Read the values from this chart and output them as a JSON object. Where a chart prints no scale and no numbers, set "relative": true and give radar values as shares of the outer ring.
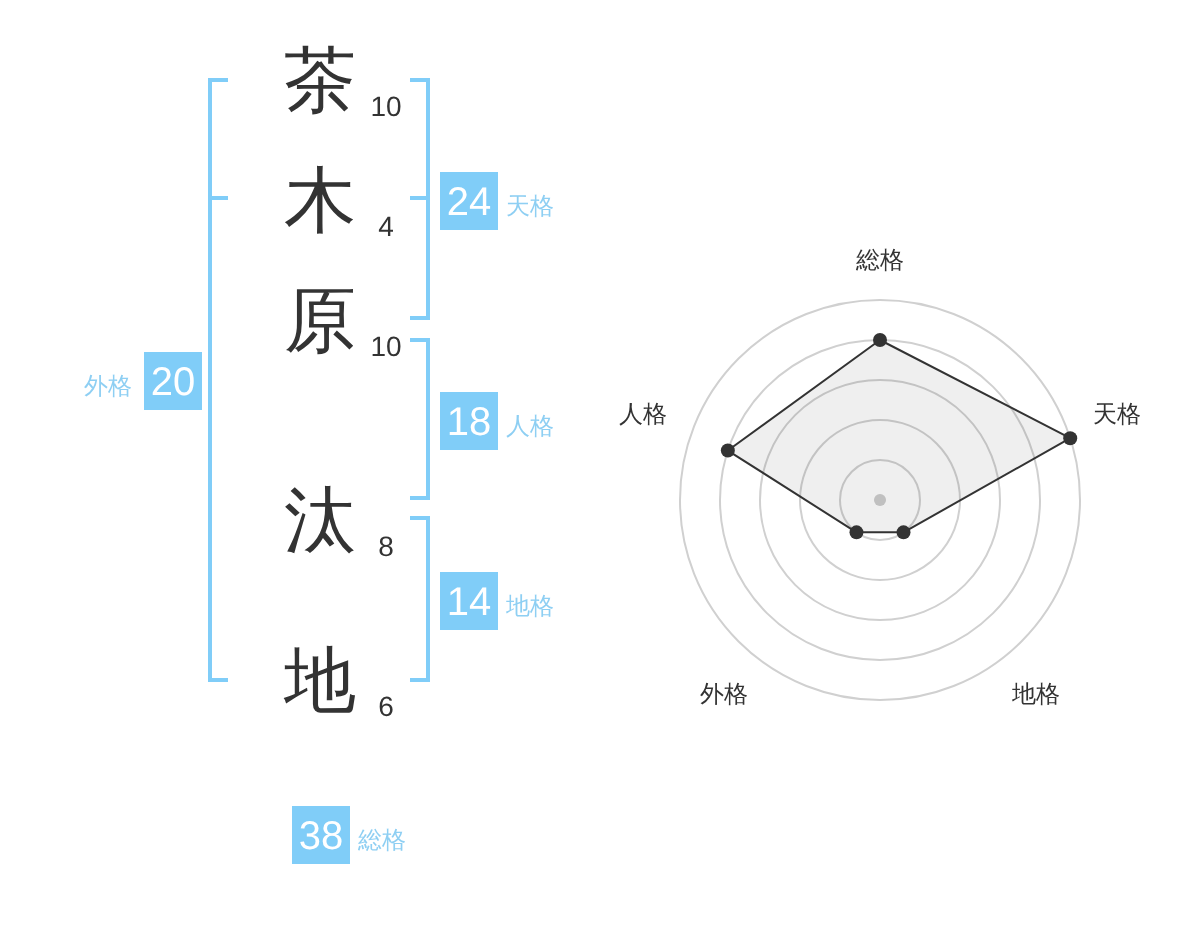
{
  "chart_data": [
    {
      "type": "other",
      "categories": [
        "茶",
        "木",
        "原",
        "汰",
        "地"
      ],
      "values": [
        10,
        4,
        10,
        8,
        6
      ],
      "data_labels": true,
      "annotations": [
        "24",
        "天格",
        "18",
        "人格",
        "14",
        "地格",
        "20",
        "外格",
        "38",
        "総格"
      ]
    },
    {
      "type": "radar",
      "categories": [
        "総格",
        "天格",
        "地格",
        "外格",
        "人格"
      ],
      "relative": true,
      "grid": true,
      "marker": "circle",
      "series": [
        {
          "color": "#333333",
          "values": [
            0.8,
            1,
            0.2,
            0.2,
            0.8
          ]
        }
      ]
    }
  ]
}
